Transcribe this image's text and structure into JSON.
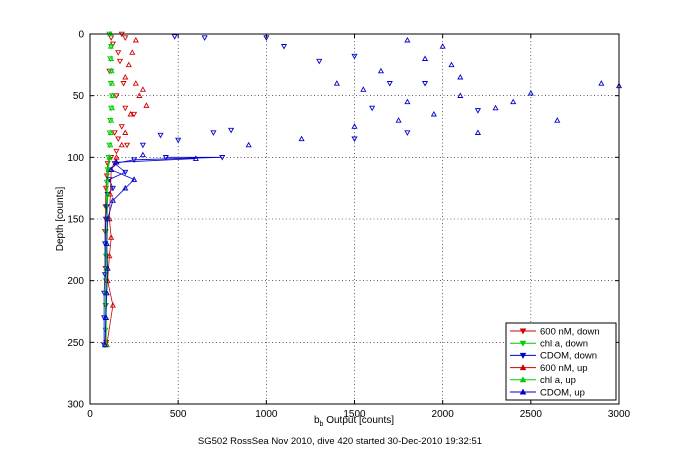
{
  "chart_data": {
    "type": "scatter",
    "xlabel_main": "b",
    "xlabel_sub": "b",
    "xlabel_rest": " Output [counts]",
    "ylabel": "Depth [counts]",
    "caption": "SG502 RossSea Nov 2010, dive 420 started 30-Dec-2010 19:32:51",
    "xlim": [
      0,
      3000
    ],
    "ylim": [
      0,
      300
    ],
    "y_reversed": true,
    "grid": true,
    "legend_position": "bottom-right",
    "x_ticks": [
      "0",
      "500",
      "1000",
      "1500",
      "2000",
      "2500",
      "3000"
    ],
    "y_ticks": [
      "0",
      "50",
      "100",
      "150",
      "200",
      "250",
      "300"
    ],
    "series": [
      {
        "name": "600 nM, down",
        "color": "#d00000",
        "marker": "triangle-down",
        "style": "line-marker",
        "points": [
          [
            180,
            0
          ],
          [
            130,
            8
          ],
          [
            160,
            15
          ],
          [
            170,
            22
          ],
          [
            110,
            30
          ],
          [
            190,
            40
          ],
          [
            150,
            50
          ],
          [
            200,
            60
          ],
          [
            250,
            65
          ],
          [
            180,
            75
          ],
          [
            160,
            85
          ],
          [
            150,
            95
          ],
          [
            120,
            100
          ],
          [
            100,
            105
          ],
          [
            95,
            115
          ],
          [
            90,
            125
          ],
          [
            88,
            140
          ],
          [
            85,
            160
          ],
          [
            88,
            190
          ],
          [
            90,
            220
          ],
          [
            92,
            250
          ],
          [
            200,
            3
          ],
          [
            120,
            3
          ],
          [
            210,
            90
          ],
          [
            140,
            80
          ]
        ]
      },
      {
        "name": "chl a, down",
        "color": "#00cc00",
        "marker": "triangle-down",
        "style": "line-marker",
        "points": [
          [
            110,
            0
          ],
          [
            120,
            10
          ],
          [
            115,
            20
          ],
          [
            120,
            30
          ],
          [
            118,
            40
          ],
          [
            125,
            50
          ],
          [
            120,
            60
          ],
          [
            115,
            70
          ],
          [
            112,
            80
          ],
          [
            110,
            90
          ],
          [
            105,
            100
          ],
          [
            100,
            110
          ],
          [
            95,
            120
          ],
          [
            92,
            140
          ],
          [
            90,
            160
          ],
          [
            90,
            180
          ],
          [
            90,
            200
          ],
          [
            88,
            220
          ],
          [
            88,
            240
          ],
          [
            88,
            252
          ]
        ]
      },
      {
        "name": "CDOM, down",
        "color": "#0000cc",
        "marker": "triangle-down",
        "style": "line-marker",
        "points": [
          [
            480,
            2
          ],
          [
            650,
            3
          ],
          [
            1000,
            3
          ],
          [
            1100,
            10
          ],
          [
            1300,
            22
          ],
          [
            1500,
            18
          ],
          [
            1700,
            40
          ],
          [
            1600,
            60
          ],
          [
            1900,
            40
          ],
          [
            2200,
            62
          ],
          [
            1800,
            80
          ],
          [
            1500,
            85
          ],
          [
            800,
            78
          ],
          [
            700,
            80
          ],
          [
            400,
            82
          ],
          [
            500,
            86
          ],
          [
            300,
            90
          ],
          [
            430,
            100
          ],
          [
            750,
            100
          ],
          [
            250,
            102
          ],
          [
            140,
            105
          ],
          [
            200,
            112
          ],
          [
            110,
            118
          ],
          [
            130,
            125
          ],
          [
            100,
            130
          ],
          [
            95,
            140
          ],
          [
            90,
            150
          ],
          [
            85,
            170
          ],
          [
            85,
            195
          ],
          [
            80,
            210
          ],
          [
            80,
            230
          ],
          [
            80,
            252
          ]
        ]
      },
      {
        "name": "600 nM, up",
        "color": "#d00000",
        "marker": "triangle-up",
        "style": "line-marker",
        "points": [
          [
            95,
            252
          ],
          [
            130,
            220
          ],
          [
            100,
            200
          ],
          [
            110,
            180
          ],
          [
            120,
            165
          ],
          [
            110,
            150
          ],
          [
            115,
            130
          ],
          [
            120,
            110
          ],
          [
            150,
            100
          ],
          [
            180,
            90
          ],
          [
            200,
            80
          ],
          [
            230,
            65
          ],
          [
            280,
            50
          ],
          [
            260,
            40
          ],
          [
            220,
            25
          ],
          [
            240,
            15
          ],
          [
            260,
            5
          ],
          [
            300,
            45
          ],
          [
            320,
            58
          ],
          [
            200,
            35
          ]
        ]
      },
      {
        "name": "chl a, up",
        "color": "#00cc00",
        "marker": "triangle-up",
        "style": "line-marker",
        "points": [
          [
            92,
            252
          ],
          [
            92,
            230
          ],
          [
            92,
            210
          ],
          [
            93,
            190
          ],
          [
            95,
            170
          ],
          [
            98,
            150
          ],
          [
            100,
            130
          ],
          [
            105,
            110
          ],
          [
            110,
            100
          ],
          [
            115,
            90
          ],
          [
            118,
            80
          ],
          [
            120,
            70
          ],
          [
            125,
            60
          ],
          [
            128,
            50
          ],
          [
            125,
            40
          ],
          [
            122,
            30
          ],
          [
            120,
            20
          ],
          [
            118,
            10
          ],
          [
            115,
            0
          ]
        ]
      },
      {
        "name": "CDOM, up",
        "color": "#0000cc",
        "marker": "triangle-up",
        "style": "line-marker",
        "points": [
          [
            85,
            252
          ],
          [
            90,
            230
          ],
          [
            95,
            210
          ],
          [
            100,
            190
          ],
          [
            95,
            170
          ],
          [
            100,
            150
          ],
          [
            130,
            135
          ],
          [
            200,
            125
          ],
          [
            250,
            118
          ],
          [
            120,
            110
          ],
          [
            150,
            104
          ],
          [
            600,
            101
          ],
          [
            300,
            98
          ],
          [
            900,
            90
          ],
          [
            1200,
            85
          ],
          [
            1500,
            75
          ],
          [
            1800,
            55
          ],
          [
            2100,
            50
          ],
          [
            2300,
            60
          ],
          [
            2500,
            48
          ],
          [
            2650,
            70
          ],
          [
            2900,
            40
          ],
          [
            3000,
            42
          ],
          [
            2000,
            10
          ],
          [
            1800,
            5
          ],
          [
            1900,
            20
          ],
          [
            2100,
            35
          ],
          [
            1650,
            30
          ],
          [
            1400,
            40
          ],
          [
            2400,
            55
          ],
          [
            2200,
            80
          ],
          [
            1750,
            70
          ],
          [
            1950,
            65
          ],
          [
            1550,
            45
          ],
          [
            2050,
            25
          ]
        ]
      }
    ]
  }
}
